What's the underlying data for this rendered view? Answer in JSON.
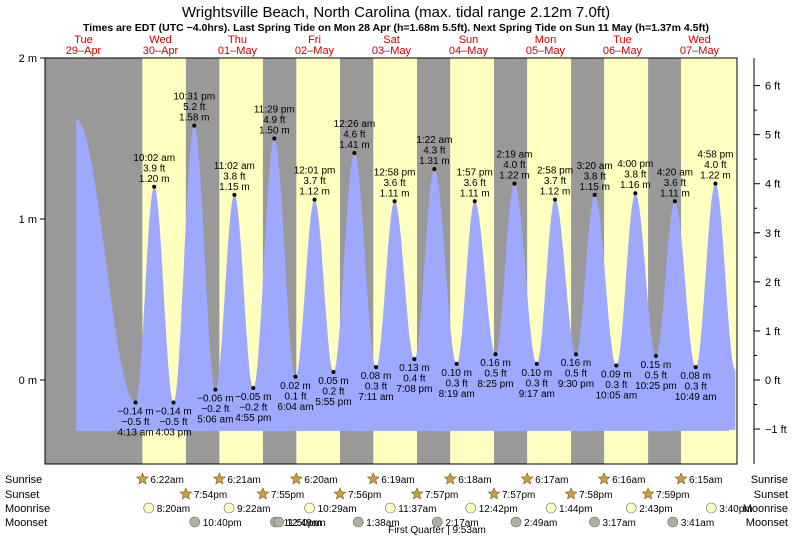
{
  "header": {
    "title": "Wrightsville Beach, North Carolina (max. tidal range 2.12m 7.0ft)",
    "subtitle": "Times are EDT (UTC −4.0hrs). Last Spring Tide on Mon 28 Apr (h=1.68m 5.5ft). Next Spring Tide on Sun 11 May (h=1.37m 4.5ft)"
  },
  "colors": {
    "night": "#999999",
    "day": "#ffffc0",
    "tide": "#9fa8ff",
    "day_label": "#cc0000",
    "sun_marker": "#c8a040",
    "moonrise_marker": "#ffffc0",
    "moonset_marker": "#b0b0a0"
  },
  "days": [
    {
      "weekday": "Tue",
      "date": "29–Apr"
    },
    {
      "weekday": "Wed",
      "date": "30–Apr"
    },
    {
      "weekday": "Thu",
      "date": "01–May"
    },
    {
      "weekday": "Fri",
      "date": "02–May"
    },
    {
      "weekday": "Sat",
      "date": "03–May"
    },
    {
      "weekday": "Sun",
      "date": "04–May"
    },
    {
      "weekday": "Mon",
      "date": "05–May"
    },
    {
      "weekday": "Tue",
      "date": "06–May"
    },
    {
      "weekday": "Wed",
      "date": "07–May"
    }
  ],
  "rows": {
    "sunrise": {
      "label": "Sunrise",
      "items": [
        {
          "day": 1,
          "time": "6:22am"
        },
        {
          "day": 2,
          "time": "6:21am"
        },
        {
          "day": 3,
          "time": "6:20am"
        },
        {
          "day": 4,
          "time": "6:19am"
        },
        {
          "day": 5,
          "time": "6:18am"
        },
        {
          "day": 6,
          "time": "6:17am"
        },
        {
          "day": 7,
          "time": "6:16am"
        },
        {
          "day": 8,
          "time": "6:15am"
        }
      ]
    },
    "sunset": {
      "label": "Sunset",
      "items": [
        {
          "day": 1,
          "time": "7:54pm"
        },
        {
          "day": 2,
          "time": "7:55pm"
        },
        {
          "day": 3,
          "time": "7:56pm"
        },
        {
          "day": 4,
          "time": "7:57pm"
        },
        {
          "day": 5,
          "time": "7:57pm"
        },
        {
          "day": 6,
          "time": "7:58pm"
        },
        {
          "day": 7,
          "time": "7:59pm"
        }
      ]
    },
    "moonrise": {
      "label": "Moonrise",
      "items": [
        {
          "day": 1,
          "time": "8:20am"
        },
        {
          "day": 2,
          "time": "9:22am"
        },
        {
          "day": 3,
          "time": "10:29am"
        },
        {
          "day": 4,
          "time": "11:37am"
        },
        {
          "day": 5,
          "time": "12:42pm"
        },
        {
          "day": 6,
          "time": "1:44pm"
        },
        {
          "day": 7,
          "time": "2:43pm"
        },
        {
          "day": 8,
          "time": "3:40pm"
        }
      ]
    },
    "moonset": {
      "label": "Moonset",
      "items": [
        {
          "day": 1,
          "time": "10:40pm"
        },
        {
          "day": 2,
          "time": "11:50pm"
        },
        {
          "day": 3,
          "time": "12:49am"
        },
        {
          "day": 4,
          "time": "1:38am"
        },
        {
          "day": 5,
          "time": "2:17am"
        },
        {
          "day": 6,
          "time": "2:49am"
        },
        {
          "day": 7,
          "time": "3:17am"
        },
        {
          "day": 8,
          "time": "3:41am"
        }
      ]
    }
  },
  "moon_phase": "First Quarter | 9:53am",
  "chart_data": {
    "type": "area",
    "title": "Wrightsville Beach, North Carolina (max. tidal range 2.12m 7.0ft)",
    "x_start": "2025-04-29 00:00",
    "x_end": "2025-05-08 00:00",
    "y_left_unit": "m",
    "y_right_unit": "ft",
    "ylim_m": [
      -0.5,
      2.0
    ],
    "yticks_left": [
      "2 m",
      "1 m",
      "0 m"
    ],
    "yticks_left_values": [
      2,
      1,
      0
    ],
    "yticks_right": [
      "6 ft",
      "5 ft",
      "4 ft",
      "3 ft",
      "2 ft",
      "1 ft",
      "0 ft",
      "−1 ft"
    ],
    "yticks_right_values": [
      6,
      5,
      4,
      3,
      2,
      1,
      0,
      -1
    ],
    "daylight": [
      {
        "rise": "2025-04-30 06:22",
        "set": "2025-04-30 19:54"
      },
      {
        "rise": "2025-05-01 06:21",
        "set": "2025-05-01 19:55"
      },
      {
        "rise": "2025-05-02 06:20",
        "set": "2025-05-02 19:56"
      },
      {
        "rise": "2025-05-03 06:19",
        "set": "2025-05-03 19:57"
      },
      {
        "rise": "2025-05-04 06:18",
        "set": "2025-05-04 19:57"
      },
      {
        "rise": "2025-05-05 06:17",
        "set": "2025-05-05 19:58"
      },
      {
        "rise": "2025-05-06 06:16",
        "set": "2025-05-06 19:59"
      },
      {
        "rise": "2025-05-07 06:15"
      }
    ],
    "tides": [
      {
        "time": "2025-04-29 09:45",
        "h": 1.62,
        "type": "high"
      },
      {
        "time": "2025-04-30 04:13",
        "h": -0.14,
        "type": "low",
        "label": [
          "−0.14 m",
          "−0.5 ft",
          "4:13 am"
        ]
      },
      {
        "time": "2025-04-30 10:02",
        "h": 1.2,
        "type": "high",
        "label": [
          "10:02 am",
          "3.9 ft",
          "1.20 m"
        ]
      },
      {
        "time": "2025-04-30 16:03",
        "h": -0.14,
        "type": "low",
        "label": [
          "−0.14 m",
          "−0.5 ft",
          "4:03 pm"
        ]
      },
      {
        "time": "2025-04-30 22:31",
        "h": 1.58,
        "type": "high",
        "label": [
          "10:31 pm",
          "5.2 ft",
          "1.58 m"
        ]
      },
      {
        "time": "2025-05-01 05:06",
        "h": -0.06,
        "type": "low",
        "label": [
          "−0.06 m",
          "−0.2 ft",
          "5:06 am"
        ]
      },
      {
        "time": "2025-05-01 11:02",
        "h": 1.15,
        "type": "high",
        "label": [
          "11:02 am",
          "3.8 ft",
          "1.15 m"
        ]
      },
      {
        "time": "2025-05-01 16:55",
        "h": -0.05,
        "type": "low",
        "label": [
          "−0.05 m",
          "−0.2 ft",
          "4:55 pm"
        ]
      },
      {
        "time": "2025-05-01 23:29",
        "h": 1.5,
        "type": "high",
        "label": [
          "11:29 pm",
          "4.9 ft",
          "1.50 m"
        ]
      },
      {
        "time": "2025-05-02 06:04",
        "h": 0.02,
        "type": "low",
        "label": [
          "0.02 m",
          "0.1 ft",
          "6:04 am"
        ]
      },
      {
        "time": "2025-05-02 12:01",
        "h": 1.12,
        "type": "high",
        "label": [
          "12:01 pm",
          "3.7 ft",
          "1.12 m"
        ]
      },
      {
        "time": "2025-05-02 17:55",
        "h": 0.05,
        "type": "low",
        "label": [
          "0.05 m",
          "0.2 ft",
          "5:55 pm"
        ]
      },
      {
        "time": "2025-05-03 00:26",
        "h": 1.41,
        "type": "high",
        "label": [
          "12:26 am",
          "4.6 ft",
          "1.41 m"
        ]
      },
      {
        "time": "2025-05-03 07:11",
        "h": 0.08,
        "type": "low",
        "label": [
          "0.08 m",
          "0.3 ft",
          "7:11 am"
        ]
      },
      {
        "time": "2025-05-03 12:58",
        "h": 1.11,
        "type": "high",
        "label": [
          "12:58 pm",
          "3.6 ft",
          "1.11 m"
        ]
      },
      {
        "time": "2025-05-03 19:08",
        "h": 0.13,
        "type": "low",
        "label": [
          "0.13 m",
          "0.4 ft",
          "7:08 pm"
        ]
      },
      {
        "time": "2025-05-04 01:22",
        "h": 1.31,
        "type": "high",
        "label": [
          "1:22 am",
          "4.3 ft",
          "1.31 m"
        ]
      },
      {
        "time": "2025-05-04 08:19",
        "h": 0.1,
        "type": "low",
        "label": [
          "0.10 m",
          "0.3 ft",
          "8:19 am"
        ]
      },
      {
        "time": "2025-05-04 13:57",
        "h": 1.11,
        "type": "high",
        "label": [
          "1:57 pm",
          "3.6 ft",
          "1.11 m"
        ]
      },
      {
        "time": "2025-05-04 20:25",
        "h": 0.16,
        "type": "low",
        "label": [
          "0.16 m",
          "0.5 ft",
          "8:25 pm"
        ]
      },
      {
        "time": "2025-05-05 02:19",
        "h": 1.22,
        "type": "high",
        "label": [
          "2:19 am",
          "4.0 ft",
          "1.22 m"
        ]
      },
      {
        "time": "2025-05-05 09:17",
        "h": 0.1,
        "type": "low",
        "label": [
          "0.10 m",
          "0.3 ft",
          "9:17 am"
        ]
      },
      {
        "time": "2025-05-05 14:58",
        "h": 1.12,
        "type": "high",
        "label": [
          "2:58 pm",
          "3.7 ft",
          "1.12 m"
        ]
      },
      {
        "time": "2025-05-05 21:30",
        "h": 0.16,
        "type": "low",
        "label": [
          "0.16 m",
          "0.5 ft",
          "9:30 pm"
        ]
      },
      {
        "time": "2025-05-06 03:20",
        "h": 1.15,
        "type": "high",
        "label": [
          "3:20 am",
          "3.8 ft",
          "1.15 m"
        ]
      },
      {
        "time": "2025-05-06 10:05",
        "h": 0.09,
        "type": "low",
        "label": [
          "0.09 m",
          "0.3 ft",
          "10:05 am"
        ]
      },
      {
        "time": "2025-05-06 16:00",
        "h": 1.16,
        "type": "high",
        "label": [
          "4:00 pm",
          "3.8 ft",
          "1.16 m"
        ]
      },
      {
        "time": "2025-05-06 22:25",
        "h": 0.15,
        "type": "low",
        "label": [
          "0.15 m",
          "0.5 ft",
          "10:25 pm"
        ]
      },
      {
        "time": "2025-05-07 04:20",
        "h": 1.11,
        "type": "high",
        "label": [
          "4:20 am",
          "3.6 ft",
          "1.11 m"
        ]
      },
      {
        "time": "2025-05-07 10:49",
        "h": 0.08,
        "type": "low",
        "label": [
          "0.08 m",
          "0.3 ft",
          "10:49 am"
        ]
      },
      {
        "time": "2025-05-07 16:58",
        "h": 1.22,
        "type": "high",
        "label": [
          "4:58 pm",
          "4.0 ft",
          "1.22 m"
        ]
      },
      {
        "time": "2025-05-07 23:10",
        "h": 0.06,
        "type": "low"
      }
    ]
  }
}
